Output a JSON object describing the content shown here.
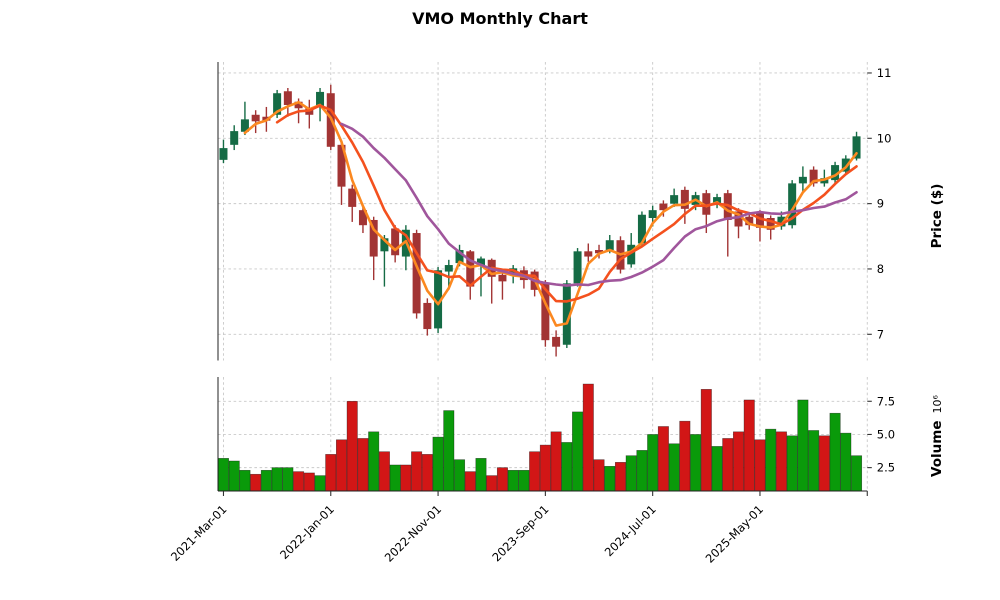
{
  "title": "VMO Monthly Chart",
  "price_axis": {
    "label": "Price ($)",
    "ticks": [
      "7",
      "8",
      "9",
      "10",
      "11"
    ],
    "tick_values": [
      7,
      8,
      9,
      10,
      11
    ]
  },
  "volume_axis": {
    "label": "Volume",
    "exponent": "10⁶",
    "ticks": [
      "2.5",
      "5.0",
      "7.5"
    ],
    "tick_values": [
      2.5,
      5.0,
      7.5
    ]
  },
  "x_axis": {
    "ticks": [
      {
        "i": 0,
        "label": "2021-Mar-01"
      },
      {
        "i": 10,
        "label": "2022-Jan-01"
      },
      {
        "i": 20,
        "label": "2022-Nov-01"
      },
      {
        "i": 30,
        "label": "2023-Sep-01"
      },
      {
        "i": 40,
        "label": "2024-Jul-01"
      },
      {
        "i": 50,
        "label": "2025-May-01"
      },
      {
        "i": 60,
        "label": ""
      }
    ]
  },
  "colors": {
    "candle_up": "#156b45",
    "candle_down": "#a23434",
    "volume_up": "#0a9a0a",
    "volume_down": "#d21616",
    "ma": [
      "#fb8820",
      "#f4511e",
      "#a0569c"
    ],
    "grid": "#c9c9c9",
    "spine": "#222222",
    "tick": "#333333"
  },
  "chart_data": {
    "type": "candlestick+volume",
    "title": "VMO Monthly Chart",
    "ylabel": "Price ($)",
    "ylabel_lower": "Volume",
    "volume_scale": "10^6",
    "price_ylim": [
      6.6,
      11.16
    ],
    "volume_ylim": [
      0.74,
      9.33
    ],
    "grid": true,
    "moving_average_windows": [
      3,
      6,
      12
    ],
    "dates": [
      "2021-03",
      "2021-04",
      "2021-05",
      "2021-06",
      "2021-07",
      "2021-08",
      "2021-09",
      "2021-10",
      "2021-11",
      "2021-12",
      "2022-01",
      "2022-02",
      "2022-03",
      "2022-04",
      "2022-05",
      "2022-06",
      "2022-07",
      "2022-08",
      "2022-09",
      "2022-10",
      "2022-11",
      "2022-12",
      "2023-01",
      "2023-02",
      "2023-03",
      "2023-04",
      "2023-05",
      "2023-06",
      "2023-07",
      "2023-08",
      "2023-09",
      "2023-10",
      "2023-11",
      "2023-12",
      "2024-01",
      "2024-02",
      "2024-03",
      "2024-04",
      "2024-05",
      "2024-06",
      "2024-07",
      "2024-08",
      "2024-09",
      "2024-10",
      "2024-11",
      "2024-12",
      "2025-01",
      "2025-02",
      "2025-03",
      "2025-04",
      "2025-05",
      "2025-06",
      "2025-07",
      "2025-08",
      "2025-09",
      "2025-10",
      "2025-11",
      "2025-12",
      "2026-01",
      "2026-02"
    ],
    "open": [
      9.67,
      9.9,
      10.1,
      10.36,
      10.33,
      10.36,
      10.72,
      10.56,
      10.46,
      10.48,
      10.69,
      9.9,
      9.23,
      8.9,
      8.75,
      8.27,
      8.62,
      8.19,
      8.55,
      7.48,
      7.09,
      7.96,
      8.09,
      8.27,
      8.04,
      8.14,
      7.91,
      7.91,
      7.98,
      7.96,
      7.78,
      6.96,
      6.84,
      7.78,
      8.27,
      8.29,
      8.29,
      8.44,
      8.07,
      8.39,
      8.78,
      9.0,
      9.0,
      9.21,
      8.98,
      9.16,
      8.98,
      9.16,
      8.88,
      8.8,
      8.86,
      8.78,
      8.65,
      8.67,
      9.31,
      9.52,
      9.31,
      9.36,
      9.49,
      9.69
    ],
    "high": [
      9.98,
      10.2,
      10.56,
      10.43,
      10.48,
      10.74,
      10.77,
      10.61,
      10.59,
      10.77,
      10.82,
      9.95,
      9.29,
      8.98,
      8.8,
      8.52,
      8.67,
      8.67,
      8.6,
      7.55,
      8.03,
      8.14,
      8.37,
      8.29,
      8.19,
      8.16,
      7.98,
      8.06,
      8.04,
      7.99,
      7.83,
      7.06,
      7.83,
      8.32,
      8.39,
      8.37,
      8.52,
      8.5,
      8.55,
      8.88,
      8.97,
      9.05,
      9.23,
      9.26,
      9.18,
      9.21,
      9.15,
      9.21,
      8.93,
      8.85,
      8.9,
      8.82,
      8.88,
      9.36,
      9.57,
      9.57,
      9.52,
      9.64,
      9.74,
      10.1
    ],
    "low": [
      9.62,
      9.82,
      10.05,
      10.08,
      10.1,
      10.31,
      10.33,
      10.23,
      10.15,
      10.26,
      9.82,
      8.98,
      8.72,
      8.55,
      7.83,
      7.73,
      8.1,
      7.98,
      7.24,
      6.98,
      7.02,
      7.68,
      8.04,
      7.53,
      7.58,
      7.47,
      7.53,
      7.78,
      7.7,
      7.58,
      6.81,
      6.66,
      6.79,
      7.73,
      8.11,
      8.16,
      8.24,
      7.93,
      8.02,
      8.34,
      8.65,
      8.8,
      8.95,
      8.69,
      8.9,
      8.55,
      8.93,
      8.19,
      8.47,
      8.6,
      8.42,
      8.45,
      8.6,
      8.62,
      9.17,
      9.26,
      9.26,
      9.31,
      9.44,
      9.66
    ],
    "close": [
      9.85,
      10.11,
      10.29,
      10.26,
      10.27,
      10.69,
      10.51,
      10.46,
      10.36,
      10.71,
      9.87,
      9.26,
      8.95,
      8.67,
      8.19,
      8.47,
      8.21,
      8.6,
      7.32,
      7.08,
      7.98,
      8.06,
      8.29,
      7.73,
      8.16,
      7.88,
      7.81,
      8.01,
      7.83,
      7.68,
      6.91,
      6.81,
      7.78,
      8.27,
      8.19,
      8.24,
      8.44,
      7.99,
      8.37,
      8.83,
      8.9,
      8.9,
      9.13,
      8.92,
      9.13,
      8.83,
      9.1,
      8.75,
      8.65,
      8.67,
      8.63,
      8.6,
      8.8,
      9.31,
      9.41,
      9.31,
      9.39,
      9.59,
      9.69,
      10.03
    ],
    "volume_millions": [
      3.2,
      3.0,
      2.3,
      2.0,
      2.3,
      2.5,
      2.5,
      2.2,
      2.1,
      1.9,
      3.5,
      4.6,
      7.5,
      4.7,
      5.2,
      3.7,
      2.7,
      2.7,
      3.7,
      3.5,
      4.8,
      6.8,
      3.1,
      2.2,
      3.2,
      1.9,
      2.5,
      2.3,
      2.3,
      3.7,
      4.2,
      5.2,
      4.4,
      6.7,
      8.8,
      3.1,
      2.6,
      2.9,
      3.4,
      3.8,
      5.0,
      5.6,
      4.3,
      6.0,
      5.0,
      8.4,
      4.1,
      4.7,
      5.2,
      7.6,
      4.6,
      5.4,
      5.2,
      4.9,
      7.6,
      5.3,
      4.9,
      6.6,
      5.1,
      3.4
    ],
    "volume_up": [
      1,
      1,
      1,
      0,
      1,
      1,
      1,
      0,
      0,
      1,
      0,
      0,
      0,
      0,
      1,
      0,
      1,
      0,
      0,
      0,
      1,
      1,
      1,
      0,
      1,
      0,
      0,
      1,
      1,
      0,
      0,
      0,
      1,
      1,
      0,
      0,
      1,
      0,
      1,
      1,
      1,
      0,
      1,
      0,
      1,
      0,
      1,
      0,
      0,
      0,
      0,
      1,
      0,
      1,
      1,
      1,
      0,
      1,
      1,
      1
    ]
  }
}
